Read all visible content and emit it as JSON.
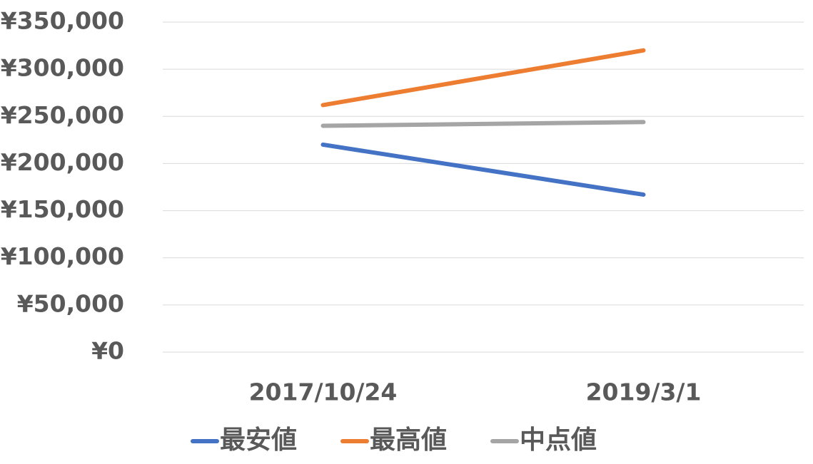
{
  "chart_data": {
    "type": "line",
    "categories": [
      "2017/10/24",
      "2019/3/1"
    ],
    "series": [
      {
        "name": "最安値",
        "color": "#4472c4",
        "values": [
          220000,
          167000
        ]
      },
      {
        "name": "最高値",
        "color": "#ed7d31",
        "values": [
          262000,
          320000
        ]
      },
      {
        "name": "中点値",
        "color": "#a5a5a5",
        "values": [
          240000,
          244000
        ]
      }
    ],
    "ylim": [
      0,
      350000
    ],
    "yticks": [
      {
        "value": 0,
        "label": "¥0"
      },
      {
        "value": 50000,
        "label": "¥50,000"
      },
      {
        "value": 100000,
        "label": "¥100,000"
      },
      {
        "value": 150000,
        "label": "¥150,000"
      },
      {
        "value": 200000,
        "label": "¥200,000"
      },
      {
        "value": 250000,
        "label": "¥250,000"
      },
      {
        "value": 300000,
        "label": "¥300,000"
      },
      {
        "value": 350000,
        "label": "¥350,000"
      }
    ],
    "grid": true
  }
}
